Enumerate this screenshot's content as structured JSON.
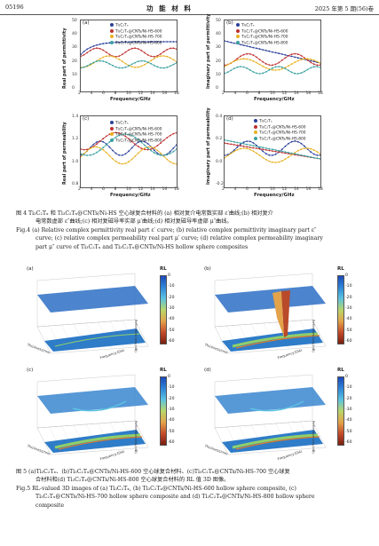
{
  "header": {
    "page_no": "05196",
    "journal": "功 能 材 料",
    "issue": "2025 年第 5 期(56)卷"
  },
  "fig4": {
    "panels": [
      {
        "label": "(a)",
        "ylabel": "Real part of permittivity",
        "xlabel": "Frequency/GHz",
        "yticks": [
          "50",
          "40",
          "30",
          "20",
          "10",
          "0"
        ],
        "xticks": [
          "2",
          "4",
          "6",
          "8",
          "10",
          "12",
          "14",
          "16",
          "18"
        ],
        "legend": [
          "Ti₃C₂Tₓ",
          "Ti₃C₂Tₓ@CNTs/Ni-HS-600",
          "Ti₃C₂Tₓ@CNTs/Ni-HS-700",
          "Ti₃C₂Tₓ@CNTs/Ni-HS-800"
        ]
      },
      {
        "label": "(b)",
        "ylabel": "Imaginary part of permittivity",
        "xlabel": "Frequency/GHz",
        "yticks": [
          "50",
          "40",
          "30",
          "20",
          "10",
          "0"
        ],
        "xticks": [
          "2",
          "4",
          "6",
          "8",
          "10",
          "12",
          "14",
          "16",
          "18"
        ],
        "legend": [
          "Ti₃C₂Tₓ",
          "Ti₃C₂Tₓ@CNTs/Ni-HS-600",
          "Ti₃C₂Tₓ@CNTs/Ni-HS-700",
          "Ti₃C₂Tₓ@CNTs/Ni-HS-800"
        ]
      },
      {
        "label": "(c)",
        "ylabel": "Real part of permeability",
        "xlabel": "Frequency/GHz",
        "yticks": [
          "1.4",
          "1.2",
          "1.0",
          "0.8"
        ],
        "xticks": [
          "2",
          "4",
          "6",
          "8",
          "10",
          "12",
          "14",
          "16",
          "18"
        ],
        "legend": [
          "Ti₃C₂Tₓ",
          "Ti₃C₂Tₓ@CNTs/Ni-HS-600",
          "Ti₃C₂Tₓ@CNTs/Ni-HS-700",
          "Ti₃C₂Tₓ@CNTs/Ni-HS-800"
        ]
      },
      {
        "label": "(d)",
        "ylabel": "Imaginary part of permeability",
        "xlabel": "Frequency/GHz",
        "yticks": [
          "0.4",
          "0.2",
          "0.0",
          "-0.2"
        ],
        "xticks": [
          "2",
          "4",
          "6",
          "8",
          "10",
          "12",
          "14",
          "16",
          "18"
        ],
        "legend": [
          "Ti₃C₂Tₓ",
          "Ti₃C₂Tₓ@CNTs/Ni-HS-600",
          "Ti₃C₂Tₓ@CNTs/Ni-HS-700",
          "Ti₃C₂Tₓ@CNTs/Ni-HS-800"
        ]
      }
    ],
    "caption_cn_1": "图 4 Ti₃C₂Tₓ 和 Ti₃C₂Tₓ@CNTs/Ni-HS 空心球复合材料的 (a) 相对复介电常数实部 ε′曲线;(b) 相对复介",
    "caption_cn_2": "电常数虚部 ε″曲线;(c) 相对复磁导率实部 μ′曲线;(d) 相对复磁导率虚部 μ″曲线。",
    "caption_en_1": "Fig.4 (a) Relative complex permittivity real part ε′ curve; (b) relative complex permittivity imaginary part ε″",
    "caption_en_2": "curve; (c) relative complex permeability real part μ′ curve; (d) relative complex permeability imaginary",
    "caption_en_3": "part μ″ curve of Ti₃C₂Tₓ and Ti₃C₂Tₓ@CNTs/Ni-HS hollow sphere composites"
  },
  "fig5": {
    "panels": [
      {
        "label": "(a)"
      },
      {
        "label": "(b)"
      },
      {
        "label": "(c)"
      },
      {
        "label": "(d)"
      }
    ],
    "cbar_title": "RL",
    "cbar_ticks": [
      "0",
      "-10",
      "-20",
      "-30",
      "-40",
      "-50",
      "-60"
    ],
    "zaxis": "Reflection loss/(dB)",
    "xaxis": "Frequency/GHz",
    "yaxis": "Thickness/mm",
    "caption_cn_1": "图 5 (a)Ti₃C₂Tₓ、(b)Ti₃C₂Tₓ@CNTs/Ni-HS-600 空心球复合材料、(c)Ti₃C₂Tₓ@CNTs/Ni-HS-700 空心球复",
    "caption_cn_2": "合材料和(d) Ti₃C₂Tₓ@CNTs/Ni-HS-800 空心球复合材料的 RL 值 3D 图像。",
    "caption_en_1": "Fig.5 RL-valued 3D images of (a) Ti₃C₂Tₓ, (b) Ti₃C₂Tₓ@CNTs/Ni-HS-600 hollow sphere composite, (c)",
    "caption_en_2": "Ti₃C₂Tₓ@CNTs/Ni-HS-700 hollow sphere composite and (d) Ti₃C₂Tₓ@CNTs/Ni-HS-800 hollow sphere",
    "caption_en_3": "composite"
  },
  "series_colors": [
    "#2a3f9a",
    "#c03030",
    "#e8b020",
    "#3aa0a0"
  ]
}
